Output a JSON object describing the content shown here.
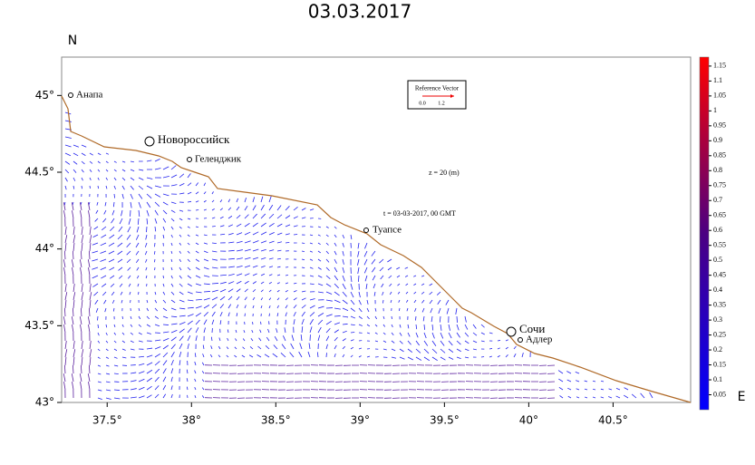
{
  "chart_data": {
    "type": "vector-map",
    "title": "03.03.2017",
    "y_label": "N",
    "x_label": "E",
    "xlim": [
      37.23,
      40.96
    ],
    "ylim": [
      43,
      45.25
    ],
    "xticks": [
      {
        "value": 37.5,
        "label": "37.5°"
      },
      {
        "value": 38,
        "label": "38°"
      },
      {
        "value": 38.5,
        "label": "38.5°"
      },
      {
        "value": 39,
        "label": "39°"
      },
      {
        "value": 39.5,
        "label": "39.5°"
      },
      {
        "value": 40,
        "label": "40°"
      },
      {
        "value": 40.5,
        "label": "40.5°"
      }
    ],
    "yticks": [
      {
        "value": 43,
        "label": "43°"
      },
      {
        "value": 43.5,
        "label": "43.5°"
      },
      {
        "value": 44,
        "label": "44°"
      },
      {
        "value": 44.5,
        "label": "44.5°"
      },
      {
        "value": 45,
        "label": "45°"
      }
    ],
    "colorbar": {
      "lim": [
        0,
        1.18
      ],
      "colors": [
        "#0000ff",
        "#4b0082",
        "#ff0000"
      ],
      "ticks": [
        0.05,
        0.1,
        0.15,
        0.2,
        0.25,
        0.3,
        0.35,
        0.4,
        0.45,
        0.5,
        0.55,
        0.6,
        0.65,
        0.7,
        0.75,
        0.8,
        0.85,
        0.9,
        0.95,
        1,
        1.05,
        1.1,
        1.15
      ]
    },
    "places": [
      "Анапа",
      "Новороссийск",
      "Геленджик",
      "Туапсе",
      "Сочи",
      "Адлер"
    ],
    "annotations": [
      "z = 20 (m)",
      "t = 03-03-2017, 00 GMT"
    ],
    "reference_vector": {
      "label": "Reference Vector",
      "ticks": [
        "0.0",
        "1.2"
      ]
    }
  }
}
